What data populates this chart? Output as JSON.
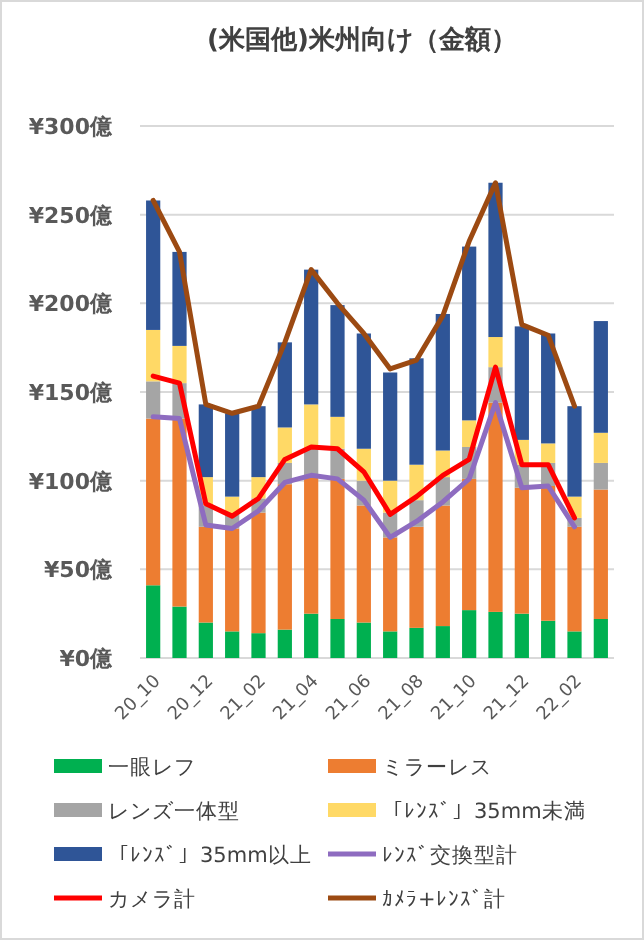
{
  "chart_data": {
    "type": "bar",
    "stacked": true,
    "title": "(米国他)米州向け（金額）",
    "categories": [
      "20_10",
      null,
      "20_12",
      null,
      "21_02",
      null,
      "21_04",
      null,
      "21_06",
      null,
      "21_08",
      null,
      "21_10",
      null,
      "21_12",
      null,
      "22_02",
      null
    ],
    "ylim": [
      0,
      300
    ],
    "yticks": [
      {
        "value": 0,
        "label": "¥0億"
      },
      {
        "value": 50,
        "label": "¥50億"
      },
      {
        "value": 100,
        "label": "¥100億"
      },
      {
        "value": 150,
        "label": "¥150億"
      },
      {
        "value": 200,
        "label": "¥200億"
      },
      {
        "value": 250,
        "label": "¥250億"
      },
      {
        "value": 300,
        "label": "¥300億"
      }
    ],
    "grid": "y",
    "legend": "bottom",
    "series": [
      {
        "name": "一眼レフ",
        "type": "bar",
        "color": "#00b050",
        "values": [
          41,
          29,
          20,
          15,
          14,
          16,
          25,
          22,
          20,
          15,
          17,
          18,
          27,
          26,
          25,
          21,
          15,
          22
        ]
      },
      {
        "name": "ミラーレス",
        "type": "bar",
        "color": "#ed7d31",
        "values": [
          94,
          106,
          54,
          58,
          68,
          82,
          78,
          79,
          66,
          53,
          57,
          68,
          74,
          118,
          71,
          76,
          59,
          73
        ]
      },
      {
        "name": "レンズ一体型",
        "type": "bar",
        "color": "#a5a5a5",
        "values": [
          21,
          20,
          12,
          8,
          8,
          12,
          15,
          17,
          14,
          14,
          15,
          16,
          18,
          20,
          13,
          13,
          5,
          15
        ]
      },
      {
        "name": "「ﾚﾝｽﾞ」35mm未満",
        "type": "bar",
        "color": "#ffd966",
        "values": [
          29,
          21,
          16,
          10,
          12,
          20,
          25,
          18,
          18,
          18,
          20,
          15,
          15,
          17,
          14,
          11,
          12,
          17
        ]
      },
      {
        "name": "「ﾚﾝｽﾞ」35mm以上",
        "type": "bar",
        "color": "#2f5597",
        "values": [
          73,
          53,
          41,
          47,
          40,
          48,
          76,
          63,
          65,
          61,
          60,
          77,
          98,
          87,
          64,
          62,
          51,
          63
        ]
      },
      {
        "name": "ﾚﾝｽﾞ交換型計",
        "type": "line",
        "color": "#8e6cc0",
        "values": [
          136,
          135,
          75,
          73,
          83,
          99,
          103,
          101,
          89,
          68,
          77,
          88,
          101,
          144,
          96,
          97,
          74,
          null
        ]
      },
      {
        "name": "カメラ計",
        "type": "line",
        "color": "#ff0000",
        "values": [
          159,
          155,
          87,
          80,
          90,
          112,
          119,
          118,
          105,
          81,
          91,
          103,
          112,
          164,
          109,
          109,
          79,
          null
        ]
      },
      {
        "name": "ｶﾒﾗ+ﾚﾝｽﾞ計",
        "type": "line",
        "color": "#9c4a12",
        "values": [
          258,
          229,
          143,
          138,
          142,
          178,
          219,
          200,
          183,
          163,
          168,
          193,
          235,
          268,
          188,
          182,
          142,
          null
        ]
      }
    ]
  }
}
